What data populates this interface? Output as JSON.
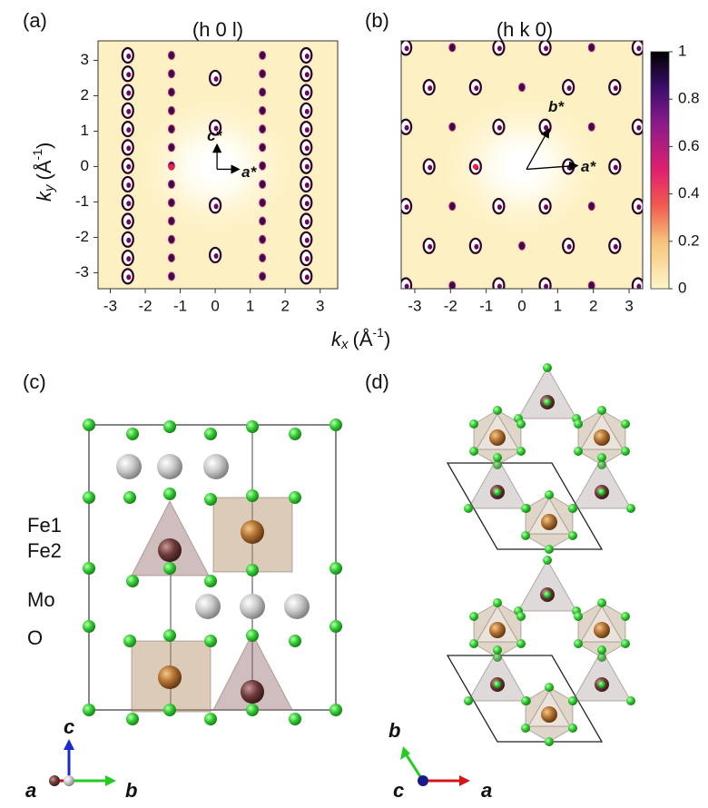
{
  "figure": {
    "panel_a": {
      "label": "(a)",
      "title": "(h 0 l)",
      "xlim": [
        -3.35,
        3.5
      ],
      "ylim": [
        -3.45,
        3.55
      ],
      "xticks": [
        -3,
        -2,
        -1,
        0,
        1,
        2,
        3
      ],
      "yticks": [
        -3,
        -2,
        -1,
        0,
        1,
        2,
        3
      ],
      "vector_labels": [
        "c*",
        "a*"
      ]
    },
    "panel_b": {
      "label": "(b)",
      "title": "(h k 0)",
      "xlim": [
        -3.38,
        3.38
      ],
      "ylim": [
        -3.45,
        3.55
      ],
      "xticks": [
        -3,
        -2,
        -1,
        0,
        1,
        2,
        3
      ],
      "vector_labels": [
        "b*",
        "a*"
      ]
    },
    "y_label": {
      "symbol": "k",
      "subscript": "y",
      "unit": "(Å",
      "superscript": "-1",
      "close": ")"
    },
    "x_label": {
      "symbol": "k",
      "subscript": "x",
      "unit": "(Å",
      "superscript": "-1",
      "close": ")"
    },
    "colorbar": {
      "ylim": [
        0,
        1
      ],
      "yticks": [
        0,
        0.2,
        0.4,
        0.6,
        0.8,
        1
      ]
    },
    "panel_c": {
      "label": "(c)",
      "legend": [
        "Fe1",
        "Fe2",
        "Mo",
        "O"
      ],
      "axes": [
        "c",
        "a",
        "b"
      ]
    },
    "panel_d": {
      "label": "(d)",
      "axes": [
        "b",
        "c",
        "a"
      ]
    }
  }
}
